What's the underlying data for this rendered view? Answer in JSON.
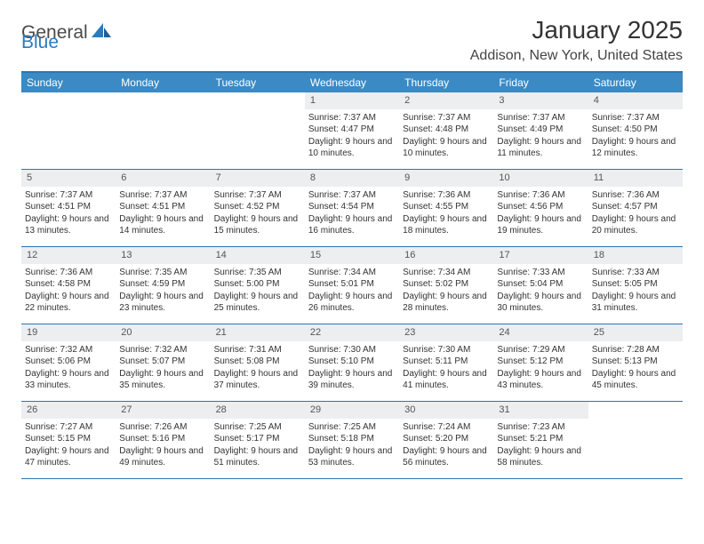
{
  "brand": {
    "word1": "General",
    "word2": "Blue"
  },
  "header": {
    "title": "January 2025",
    "location": "Addison, New York, United States"
  },
  "colors": {
    "header_bar": "#3b8ac4",
    "rule": "#2a77b6",
    "daynum_bg": "#eceeef",
    "text": "#323232"
  },
  "weekdays": [
    "Sunday",
    "Monday",
    "Tuesday",
    "Wednesday",
    "Thursday",
    "Friday",
    "Saturday"
  ],
  "calendar": {
    "first_weekday_index": 3,
    "days": [
      {
        "n": 1,
        "sunrise": "7:37 AM",
        "sunset": "4:47 PM",
        "daylight": "9 hours and 10 minutes."
      },
      {
        "n": 2,
        "sunrise": "7:37 AM",
        "sunset": "4:48 PM",
        "daylight": "9 hours and 10 minutes."
      },
      {
        "n": 3,
        "sunrise": "7:37 AM",
        "sunset": "4:49 PM",
        "daylight": "9 hours and 11 minutes."
      },
      {
        "n": 4,
        "sunrise": "7:37 AM",
        "sunset": "4:50 PM",
        "daylight": "9 hours and 12 minutes."
      },
      {
        "n": 5,
        "sunrise": "7:37 AM",
        "sunset": "4:51 PM",
        "daylight": "9 hours and 13 minutes."
      },
      {
        "n": 6,
        "sunrise": "7:37 AM",
        "sunset": "4:51 PM",
        "daylight": "9 hours and 14 minutes."
      },
      {
        "n": 7,
        "sunrise": "7:37 AM",
        "sunset": "4:52 PM",
        "daylight": "9 hours and 15 minutes."
      },
      {
        "n": 8,
        "sunrise": "7:37 AM",
        "sunset": "4:54 PM",
        "daylight": "9 hours and 16 minutes."
      },
      {
        "n": 9,
        "sunrise": "7:36 AM",
        "sunset": "4:55 PM",
        "daylight": "9 hours and 18 minutes."
      },
      {
        "n": 10,
        "sunrise": "7:36 AM",
        "sunset": "4:56 PM",
        "daylight": "9 hours and 19 minutes."
      },
      {
        "n": 11,
        "sunrise": "7:36 AM",
        "sunset": "4:57 PM",
        "daylight": "9 hours and 20 minutes."
      },
      {
        "n": 12,
        "sunrise": "7:36 AM",
        "sunset": "4:58 PM",
        "daylight": "9 hours and 22 minutes."
      },
      {
        "n": 13,
        "sunrise": "7:35 AM",
        "sunset": "4:59 PM",
        "daylight": "9 hours and 23 minutes."
      },
      {
        "n": 14,
        "sunrise": "7:35 AM",
        "sunset": "5:00 PM",
        "daylight": "9 hours and 25 minutes."
      },
      {
        "n": 15,
        "sunrise": "7:34 AM",
        "sunset": "5:01 PM",
        "daylight": "9 hours and 26 minutes."
      },
      {
        "n": 16,
        "sunrise": "7:34 AM",
        "sunset": "5:02 PM",
        "daylight": "9 hours and 28 minutes."
      },
      {
        "n": 17,
        "sunrise": "7:33 AM",
        "sunset": "5:04 PM",
        "daylight": "9 hours and 30 minutes."
      },
      {
        "n": 18,
        "sunrise": "7:33 AM",
        "sunset": "5:05 PM",
        "daylight": "9 hours and 31 minutes."
      },
      {
        "n": 19,
        "sunrise": "7:32 AM",
        "sunset": "5:06 PM",
        "daylight": "9 hours and 33 minutes."
      },
      {
        "n": 20,
        "sunrise": "7:32 AM",
        "sunset": "5:07 PM",
        "daylight": "9 hours and 35 minutes."
      },
      {
        "n": 21,
        "sunrise": "7:31 AM",
        "sunset": "5:08 PM",
        "daylight": "9 hours and 37 minutes."
      },
      {
        "n": 22,
        "sunrise": "7:30 AM",
        "sunset": "5:10 PM",
        "daylight": "9 hours and 39 minutes."
      },
      {
        "n": 23,
        "sunrise": "7:30 AM",
        "sunset": "5:11 PM",
        "daylight": "9 hours and 41 minutes."
      },
      {
        "n": 24,
        "sunrise": "7:29 AM",
        "sunset": "5:12 PM",
        "daylight": "9 hours and 43 minutes."
      },
      {
        "n": 25,
        "sunrise": "7:28 AM",
        "sunset": "5:13 PM",
        "daylight": "9 hours and 45 minutes."
      },
      {
        "n": 26,
        "sunrise": "7:27 AM",
        "sunset": "5:15 PM",
        "daylight": "9 hours and 47 minutes."
      },
      {
        "n": 27,
        "sunrise": "7:26 AM",
        "sunset": "5:16 PM",
        "daylight": "9 hours and 49 minutes."
      },
      {
        "n": 28,
        "sunrise": "7:25 AM",
        "sunset": "5:17 PM",
        "daylight": "9 hours and 51 minutes."
      },
      {
        "n": 29,
        "sunrise": "7:25 AM",
        "sunset": "5:18 PM",
        "daylight": "9 hours and 53 minutes."
      },
      {
        "n": 30,
        "sunrise": "7:24 AM",
        "sunset": "5:20 PM",
        "daylight": "9 hours and 56 minutes."
      },
      {
        "n": 31,
        "sunrise": "7:23 AM",
        "sunset": "5:21 PM",
        "daylight": "9 hours and 58 minutes."
      }
    ]
  },
  "labels": {
    "sunrise": "Sunrise:",
    "sunset": "Sunset:",
    "daylight": "Daylight:"
  }
}
